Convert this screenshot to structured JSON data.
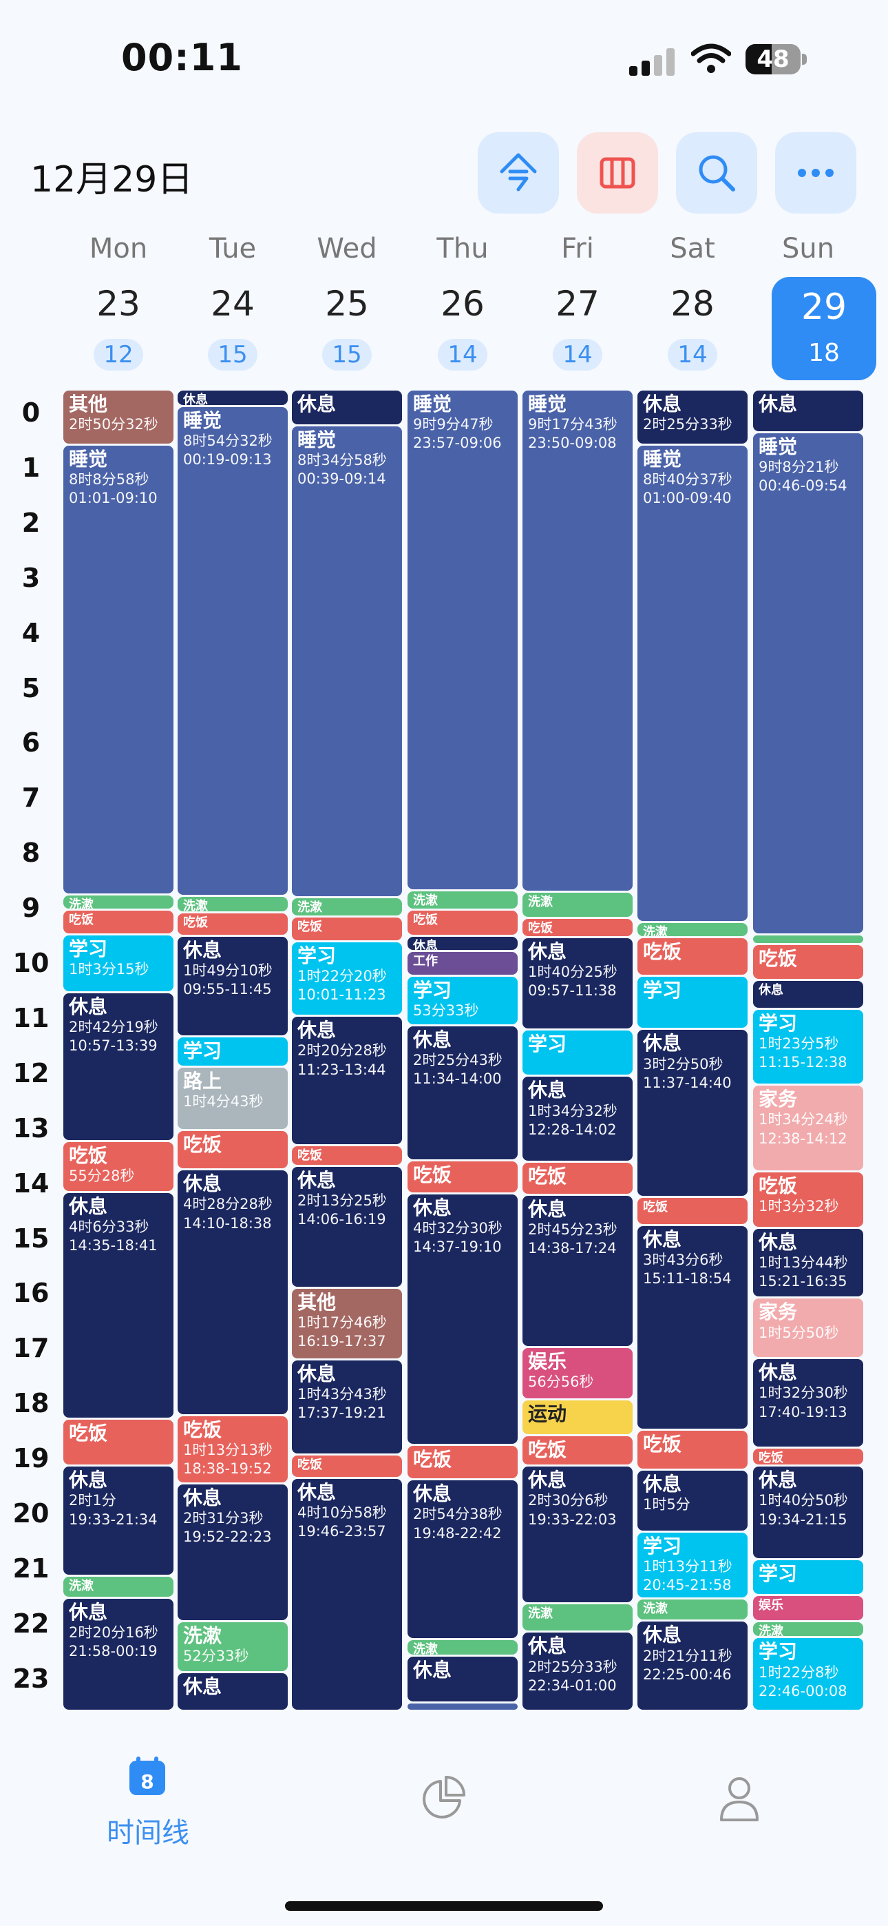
{
  "status": {
    "time": "00:11",
    "battery": "48",
    "battery_level": 0.48
  },
  "header": {
    "date": "12月29日",
    "buttons": [
      "today-button",
      "column-view-button",
      "search-button",
      "more-button"
    ]
  },
  "colors": {
    "accent": "#2f8cf5",
    "sleep": "#4a62a8",
    "rest": "#1b275f",
    "wash": "#5dc27f",
    "meal": "#e8625c",
    "study": "#00c4f0",
    "other": "#a46863",
    "road": "#aab5bc",
    "work": "#6b4e96",
    "fun": "#d9507e",
    "sport": "#f7d24b",
    "chores": "#f2abad"
  },
  "days": [
    {
      "name": "Mon",
      "num": "23",
      "count": "12"
    },
    {
      "name": "Tue",
      "num": "24",
      "count": "15"
    },
    {
      "name": "Wed",
      "num": "25",
      "count": "15"
    },
    {
      "name": "Thu",
      "num": "26",
      "count": "14"
    },
    {
      "name": "Fri",
      "num": "27",
      "count": "14"
    },
    {
      "name": "Sat",
      "num": "28",
      "count": "14"
    },
    {
      "name": "Sun",
      "num": "29",
      "count": "18"
    }
  ],
  "hours": [
    "0",
    "1",
    "2",
    "3",
    "4",
    "5",
    "6",
    "7",
    "8",
    "9",
    "10",
    "11",
    "12",
    "13",
    "14",
    "15",
    "16",
    "17",
    "18",
    "19",
    "20",
    "21",
    "22",
    "23"
  ],
  "events": [
    [
      {
        "t": "其他",
        "d": "2时50分32秒",
        "r": "",
        "c": "other",
        "s": 0,
        "e": 1
      },
      {
        "t": "睡觉",
        "d": "8时8分58秒",
        "r": "01:01-09:10",
        "c": "sleep",
        "s": 1,
        "e": 9.17
      },
      {
        "t": "洗漱",
        "d": "",
        "r": "",
        "c": "wash",
        "s": 9.17,
        "e": 9.45
      },
      {
        "t": "吃饭",
        "d": "",
        "r": "",
        "c": "meal",
        "s": 9.45,
        "e": 9.9
      },
      {
        "t": "学习",
        "d": "1时3分15秒",
        "r": "",
        "c": "study",
        "s": 9.9,
        "e": 10.95
      },
      {
        "t": "休息",
        "d": "2时42分19秒",
        "r": "10:57-13:39",
        "c": "rest",
        "s": 10.95,
        "e": 13.65
      },
      {
        "t": "吃饭",
        "d": "55分28秒",
        "r": "",
        "c": "meal",
        "s": 13.65,
        "e": 14.58
      },
      {
        "t": "休息",
        "d": "4时6分33秒",
        "r": "14:35-18:41",
        "c": "rest",
        "s": 14.58,
        "e": 18.7
      },
      {
        "t": "吃饭",
        "d": "",
        "r": "",
        "c": "meal",
        "s": 18.7,
        "e": 19.55
      },
      {
        "t": "休息",
        "d": "2时1分",
        "r": "19:33-21:34",
        "c": "rest",
        "s": 19.55,
        "e": 21.55
      },
      {
        "t": "洗漱",
        "d": "",
        "r": "",
        "c": "wash",
        "s": 21.55,
        "e": 21.95
      },
      {
        "t": "休息",
        "d": "2时20分16秒",
        "r": "21:58-00:19",
        "c": "rest",
        "s": 21.95,
        "e": 24
      }
    ],
    [
      {
        "t": "休息",
        "d": "",
        "r": "",
        "c": "rest",
        "s": 0,
        "e": 0.3
      },
      {
        "t": "睡觉",
        "d": "8时54分32秒",
        "r": "00:19-09:13",
        "c": "sleep",
        "s": 0.3,
        "e": 9.2
      },
      {
        "t": "洗漱",
        "d": "",
        "r": "",
        "c": "wash",
        "s": 9.2,
        "e": 9.5
      },
      {
        "t": "吃饭",
        "d": "",
        "r": "",
        "c": "meal",
        "s": 9.5,
        "e": 9.92
      },
      {
        "t": "休息",
        "d": "1时49分10秒",
        "r": "09:55-11:45",
        "c": "rest",
        "s": 9.92,
        "e": 11.75
      },
      {
        "t": "学习",
        "d": "",
        "r": "",
        "c": "study",
        "s": 11.75,
        "e": 12.3
      },
      {
        "t": "路上",
        "d": "1时4分43秒",
        "r": "",
        "c": "road",
        "s": 12.3,
        "e": 13.45
      },
      {
        "t": "吃饭",
        "d": "",
        "r": "",
        "c": "meal",
        "s": 13.45,
        "e": 14.17
      },
      {
        "t": "休息",
        "d": "4时28分28秒",
        "r": "14:10-18:38",
        "c": "rest",
        "s": 14.17,
        "e": 18.63
      },
      {
        "t": "吃饭",
        "d": "1时13分13秒",
        "r": "18:38-19:52",
        "c": "meal",
        "s": 18.63,
        "e": 19.87
      },
      {
        "t": "休息",
        "d": "2时31分3秒",
        "r": "19:52-22:23",
        "c": "rest",
        "s": 19.87,
        "e": 22.38
      },
      {
        "t": "洗漱",
        "d": "52分33秒",
        "r": "",
        "c": "wash",
        "s": 22.38,
        "e": 23.3
      },
      {
        "t": "休息",
        "d": "",
        "r": "",
        "c": "rest",
        "s": 23.3,
        "e": 24
      }
    ],
    [
      {
        "t": "休息",
        "d": "",
        "r": "",
        "c": "rest",
        "s": 0,
        "e": 0.65
      },
      {
        "t": "睡觉",
        "d": "8时34分58秒",
        "r": "00:39-09:14",
        "c": "sleep",
        "s": 0.65,
        "e": 9.23
      },
      {
        "t": "洗漱",
        "d": "",
        "r": "",
        "c": "wash",
        "s": 9.23,
        "e": 9.58
      },
      {
        "t": "吃饭",
        "d": "",
        "r": "",
        "c": "meal",
        "s": 9.58,
        "e": 10.02
      },
      {
        "t": "学习",
        "d": "1时22分20秒",
        "r": "10:01-11:23",
        "c": "study",
        "s": 10.02,
        "e": 11.38
      },
      {
        "t": "休息",
        "d": "2时20分28秒",
        "r": "11:23-13:44",
        "c": "rest",
        "s": 11.38,
        "e": 13.73
      },
      {
        "t": "吃饭",
        "d": "",
        "r": "",
        "c": "meal",
        "s": 13.73,
        "e": 14.1
      },
      {
        "t": "休息",
        "d": "2时13分25秒",
        "r": "14:06-16:19",
        "c": "rest",
        "s": 14.1,
        "e": 16.32
      },
      {
        "t": "其他",
        "d": "1时17分46秒",
        "r": "16:19-17:37",
        "c": "other",
        "s": 16.32,
        "e": 17.62
      },
      {
        "t": "休息",
        "d": "1时43分43秒",
        "r": "17:37-19:21",
        "c": "rest",
        "s": 17.62,
        "e": 19.35
      },
      {
        "t": "吃饭",
        "d": "",
        "r": "",
        "c": "meal",
        "s": 19.35,
        "e": 19.77
      },
      {
        "t": "休息",
        "d": "4时10分58秒",
        "r": "19:46-23:57",
        "c": "rest",
        "s": 19.77,
        "e": 24
      }
    ],
    [
      {
        "t": "睡觉",
        "d": "9时9分47秒",
        "r": "23:57-09:06",
        "c": "sleep",
        "s": 0,
        "e": 9.1
      },
      {
        "t": "洗漱",
        "d": "",
        "r": "",
        "c": "wash",
        "s": 9.1,
        "e": 9.45
      },
      {
        "t": "吃饭",
        "d": "",
        "r": "",
        "c": "meal",
        "s": 9.45,
        "e": 9.93
      },
      {
        "t": "休息",
        "d": "",
        "r": "",
        "c": "rest",
        "s": 9.93,
        "e": 10.2
      },
      {
        "t": "工作",
        "d": "",
        "r": "",
        "c": "work",
        "s": 10.2,
        "e": 10.65
      },
      {
        "t": "学习",
        "d": "53分33秒",
        "r": "",
        "c": "study",
        "s": 10.65,
        "e": 11.55
      },
      {
        "t": "休息",
        "d": "2时25分43秒",
        "r": "11:34-14:00",
        "c": "rest",
        "s": 11.55,
        "e": 14.0
      },
      {
        "t": "吃饭",
        "d": "",
        "r": "",
        "c": "meal",
        "s": 14.0,
        "e": 14.6
      },
      {
        "t": "休息",
        "d": "4时32分30秒",
        "r": "14:37-19:10",
        "c": "rest",
        "s": 14.6,
        "e": 19.17
      },
      {
        "t": "吃饭",
        "d": "",
        "r": "",
        "c": "meal",
        "s": 19.17,
        "e": 19.8
      },
      {
        "t": "休息",
        "d": "2时54分38秒",
        "r": "19:48-22:42",
        "c": "rest",
        "s": 19.8,
        "e": 22.7
      },
      {
        "t": "洗漱",
        "d": "",
        "r": "",
        "c": "wash",
        "s": 22.7,
        "e": 23.0
      },
      {
        "t": "休息",
        "d": "",
        "r": "",
        "c": "rest",
        "s": 23.0,
        "e": 23.85
      },
      {
        "t": "",
        "d": "",
        "r": "",
        "c": "sleep",
        "s": 23.85,
        "e": 24
      }
    ],
    [
      {
        "t": "睡觉",
        "d": "9时17分43秒",
        "r": "23:50-09:08",
        "c": "sleep",
        "s": 0,
        "e": 9.13
      },
      {
        "t": "洗漱",
        "d": "",
        "r": "",
        "c": "wash",
        "s": 9.13,
        "e": 9.6
      },
      {
        "t": "吃饭",
        "d": "",
        "r": "",
        "c": "meal",
        "s": 9.6,
        "e": 9.95
      },
      {
        "t": "休息",
        "d": "1时40分25秒",
        "r": "09:57-11:38",
        "c": "rest",
        "s": 9.95,
        "e": 11.63
      },
      {
        "t": "学习",
        "d": "",
        "r": "",
        "c": "study",
        "s": 11.63,
        "e": 12.47
      },
      {
        "t": "休息",
        "d": "1时34分32秒",
        "r": "12:28-14:02",
        "c": "rest",
        "s": 12.47,
        "e": 14.03
      },
      {
        "t": "吃饭",
        "d": "",
        "r": "",
        "c": "meal",
        "s": 14.03,
        "e": 14.63
      },
      {
        "t": "休息",
        "d": "2时45分23秒",
        "r": "14:38-17:24",
        "c": "rest",
        "s": 14.63,
        "e": 17.4
      },
      {
        "t": "娱乐",
        "d": "56分56秒",
        "r": "",
        "c": "fun",
        "s": 17.4,
        "e": 18.35
      },
      {
        "t": "运动",
        "d": "",
        "r": "",
        "c": "sport",
        "s": 18.35,
        "e": 19.0
      },
      {
        "t": "吃饭",
        "d": "",
        "r": "",
        "c": "meal",
        "s": 19.0,
        "e": 19.55
      },
      {
        "t": "休息",
        "d": "2时30分6秒",
        "r": "19:33-22:03",
        "c": "rest",
        "s": 19.55,
        "e": 22.05
      },
      {
        "t": "洗漱",
        "d": "",
        "r": "",
        "c": "wash",
        "s": 22.05,
        "e": 22.57
      },
      {
        "t": "休息",
        "d": "2时25分33秒",
        "r": "22:34-01:00",
        "c": "rest",
        "s": 22.57,
        "e": 24
      }
    ],
    [
      {
        "t": "休息",
        "d": "2时25分33秒",
        "r": "",
        "c": "rest",
        "s": 0,
        "e": 1.0
      },
      {
        "t": "睡觉",
        "d": "8时40分37秒",
        "r": "01:00-09:40",
        "c": "sleep",
        "s": 1.0,
        "e": 9.67
      },
      {
        "t": "洗漱",
        "d": "",
        "r": "",
        "c": "wash",
        "s": 9.67,
        "e": 9.95
      },
      {
        "t": "吃饭",
        "d": "",
        "r": "",
        "c": "meal",
        "s": 9.95,
        "e": 10.65
      },
      {
        "t": "学习",
        "d": "",
        "r": "",
        "c": "study",
        "s": 10.65,
        "e": 11.62
      },
      {
        "t": "休息",
        "d": "3时2分50秒",
        "r": "11:37-14:40",
        "c": "rest",
        "s": 11.62,
        "e": 14.67
      },
      {
        "t": "吃饭",
        "d": "",
        "r": "",
        "c": "meal",
        "s": 14.67,
        "e": 15.18
      },
      {
        "t": "休息",
        "d": "3时43分6秒",
        "r": "15:11-18:54",
        "c": "rest",
        "s": 15.18,
        "e": 18.9
      },
      {
        "t": "吃饭",
        "d": "",
        "r": "",
        "c": "meal",
        "s": 18.9,
        "e": 19.62
      },
      {
        "t": "休息",
        "d": "1时5分",
        "r": "",
        "c": "rest",
        "s": 19.62,
        "e": 20.75
      },
      {
        "t": "学习",
        "d": "1时13分11秒",
        "r": "20:45-21:58",
        "c": "study",
        "s": 20.75,
        "e": 21.97
      },
      {
        "t": "洗漱",
        "d": "",
        "r": "",
        "c": "wash",
        "s": 21.97,
        "e": 22.37
      },
      {
        "t": "休息",
        "d": "2时21分11秒",
        "r": "22:25-00:46",
        "c": "rest",
        "s": 22.37,
        "e": 24
      }
    ],
    [
      {
        "t": "休息",
        "d": "",
        "r": "",
        "c": "rest",
        "s": 0,
        "e": 0.77
      },
      {
        "t": "睡觉",
        "d": "9时8分21秒",
        "r": "00:46-09:54",
        "c": "sleep",
        "s": 0.77,
        "e": 9.9
      },
      {
        "t": "",
        "d": "",
        "r": "",
        "c": "wash",
        "s": 9.9,
        "e": 10.07
      },
      {
        "t": "吃饭",
        "d": "",
        "r": "",
        "c": "meal",
        "s": 10.07,
        "e": 10.73
      },
      {
        "t": "休息",
        "d": "",
        "r": "",
        "c": "rest",
        "s": 10.73,
        "e": 11.25
      },
      {
        "t": "学习",
        "d": "1时23分5秒",
        "r": "11:15-12:38",
        "c": "study",
        "s": 11.25,
        "e": 12.63
      },
      {
        "t": "家务",
        "d": "1时34分24秒",
        "r": "12:38-14:12",
        "c": "chores",
        "s": 12.63,
        "e": 14.2
      },
      {
        "t": "吃饭",
        "d": "1时3分32秒",
        "r": "",
        "c": "meal",
        "s": 14.2,
        "e": 15.23
      },
      {
        "t": "休息",
        "d": "1时13分44秒",
        "r": "15:21-16:35",
        "c": "rest",
        "s": 15.23,
        "e": 16.5
      },
      {
        "t": "家务",
        "d": "1时5分50秒",
        "r": "",
        "c": "chores",
        "s": 16.5,
        "e": 17.6
      },
      {
        "t": "休息",
        "d": "1时32分30秒",
        "r": "17:40-19:13",
        "c": "rest",
        "s": 17.6,
        "e": 19.22
      },
      {
        "t": "吃饭",
        "d": "",
        "r": "",
        "c": "meal",
        "s": 19.22,
        "e": 19.55
      },
      {
        "t": "休息",
        "d": "1时40分50秒",
        "r": "19:34-21:15",
        "c": "rest",
        "s": 19.55,
        "e": 21.25
      },
      {
        "t": "学习",
        "d": "",
        "r": "",
        "c": "study",
        "s": 21.25,
        "e": 21.9
      },
      {
        "t": "娱乐",
        "d": "",
        "r": "",
        "c": "fun",
        "s": 21.9,
        "e": 22.38
      },
      {
        "t": "洗漱",
        "d": "",
        "r": "",
        "c": "wash",
        "s": 22.38,
        "e": 22.67
      },
      {
        "t": "学习",
        "d": "1时22分8秒",
        "r": "22:46-00:08",
        "c": "study",
        "s": 22.67,
        "e": 24
      }
    ]
  ],
  "tabs": [
    {
      "label": "时间线",
      "icon": "calendar-icon",
      "badge": "8"
    },
    {
      "label": "",
      "icon": "pie-chart-icon"
    },
    {
      "label": "",
      "icon": "person-icon"
    }
  ]
}
